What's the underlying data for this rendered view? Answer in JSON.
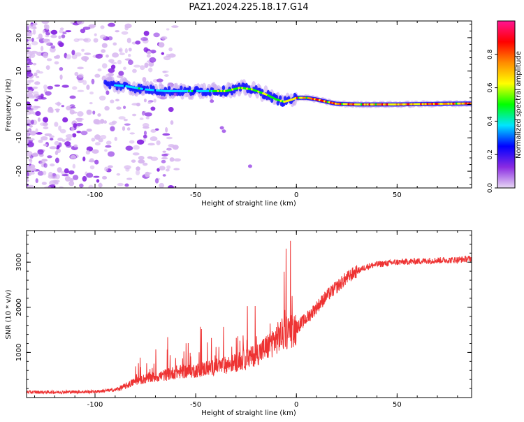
{
  "title": "PAZ1.2024.225.18.17.G14",
  "colors": {
    "snr_line": "#ee3333",
    "axis": "#000000",
    "background": "#ffffff"
  },
  "chart_data": [
    {
      "type": "heatmap",
      "xlabel": "Height of straight line (km)",
      "ylabel": "Frequency (Hz)",
      "xlim": [
        -134,
        87
      ],
      "ylim": [
        -25,
        25
      ],
      "xticks": [
        -100,
        -50,
        0,
        50
      ],
      "yticks": [
        -20,
        -10,
        0,
        10,
        20
      ],
      "colorbar": {
        "label": "Normalized spectral amplitude",
        "range": [
          0,
          1
        ],
        "ticks": [
          0.0,
          0.2,
          0.4,
          0.6,
          0.8
        ],
        "colors": [
          "#e8d8f4",
          "#8a2be2",
          "#0000ff",
          "#00e5ff",
          "#00ff00",
          "#ffff00",
          "#ff8c00",
          "#ff0000",
          "#ff1493"
        ]
      },
      "ridge": {
        "x": [
          -95,
          -85,
          -75,
          -65,
          -55,
          -45,
          -35,
          -28,
          -22,
          -15,
          -10,
          -6,
          -2,
          0,
          5,
          10,
          15,
          20,
          30,
          50,
          70,
          87
        ],
        "frequency": [
          6,
          5.5,
          4.5,
          4,
          4,
          4,
          4,
          5,
          4.5,
          3,
          1.5,
          0.8,
          1.5,
          2,
          2,
          1.5,
          0.8,
          0.2,
          0,
          0,
          0.2,
          0.3
        ]
      },
      "grid": false
    },
    {
      "type": "line",
      "xlabel": "Height of straight line (km)",
      "ylabel": "SNR (10 * v/v)",
      "xlim": [
        -134,
        87
      ],
      "ylim": [
        0,
        3700
      ],
      "xticks": [
        -100,
        -50,
        0,
        50
      ],
      "yticks": [
        1000,
        2000,
        3000
      ],
      "series": [
        {
          "x": [
            -134,
            -120,
            -100,
            -90,
            -85,
            -80,
            -75,
            -70,
            -65,
            -60,
            -55,
            -50,
            -45,
            -40,
            -35,
            -30,
            -25,
            -20,
            -15,
            -10,
            -5,
            0,
            5,
            10,
            15,
            20,
            25,
            30,
            35,
            40,
            50,
            60,
            70,
            80,
            87
          ],
          "values": [
            120,
            120,
            130,
            170,
            250,
            360,
            420,
            460,
            500,
            560,
            580,
            600,
            640,
            680,
            720,
            780,
            850,
            950,
            1100,
            1300,
            1450,
            1550,
            1750,
            2000,
            2250,
            2450,
            2650,
            2800,
            2900,
            2950,
            3000,
            3020,
            3040,
            3050,
            3080
          ]
        }
      ],
      "grid": false
    }
  ]
}
